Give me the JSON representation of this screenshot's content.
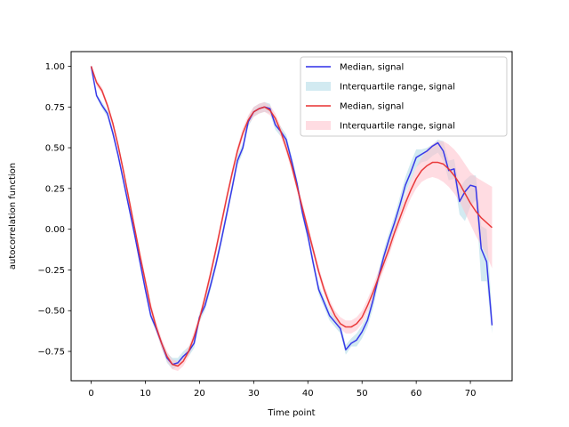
{
  "chart_data": {
    "type": "line",
    "xlabel": "Time point",
    "ylabel": "autocorrelation function",
    "xlim": [
      -3.7,
      77.7
    ],
    "ylim": [
      -0.93,
      1.09
    ],
    "xticks": [
      0,
      10,
      20,
      30,
      40,
      50,
      60,
      70
    ],
    "yticks": [
      -0.75,
      -0.5,
      -0.25,
      0.0,
      0.25,
      0.5,
      0.75,
      1.0
    ],
    "ytick_labels": [
      "−0.75",
      "−0.50",
      "−0.25",
      "0.00",
      "0.25",
      "0.50",
      "0.75",
      "1.00"
    ],
    "grid": false,
    "legend_position": "top-right",
    "legend": [
      {
        "label": "Median, signal",
        "kind": "line",
        "color": "#2f2fe8"
      },
      {
        "label": "Interquartile range, signal",
        "kind": "band",
        "color": "#add8e6"
      },
      {
        "label": "Median, signal",
        "kind": "line",
        "color": "#e83030"
      },
      {
        "label": "Interquartile range, signal",
        "kind": "band",
        "color": "#ffc0cb"
      }
    ],
    "series": [
      {
        "color": "#2f2fe8",
        "band_color": "#add8e6",
        "x": [
          0,
          1,
          2,
          3,
          4,
          5,
          6,
          7,
          8,
          9,
          10,
          11,
          12,
          13,
          14,
          15,
          16,
          17,
          18,
          19,
          20,
          21,
          22,
          23,
          24,
          25,
          26,
          27,
          28,
          29,
          30,
          31,
          32,
          33,
          34,
          35,
          36,
          37,
          38,
          39,
          40,
          41,
          42,
          43,
          44,
          45,
          46,
          47,
          48,
          49,
          50,
          51,
          52,
          53,
          54,
          55,
          56,
          57,
          58,
          59,
          60,
          61,
          62,
          63,
          64,
          65,
          66,
          67,
          68,
          69,
          70,
          71,
          72,
          73,
          74
        ],
        "values": [
          1.0,
          0.82,
          0.76,
          0.71,
          0.59,
          0.45,
          0.29,
          0.13,
          -0.03,
          -0.2,
          -0.37,
          -0.53,
          -0.61,
          -0.7,
          -0.79,
          -0.83,
          -0.82,
          -0.78,
          -0.75,
          -0.7,
          -0.54,
          -0.47,
          -0.35,
          -0.22,
          -0.07,
          0.09,
          0.25,
          0.42,
          0.5,
          0.66,
          0.72,
          0.74,
          0.75,
          0.74,
          0.64,
          0.6,
          0.55,
          0.42,
          0.28,
          0.1,
          -0.04,
          -0.21,
          -0.37,
          -0.45,
          -0.53,
          -0.57,
          -0.61,
          -0.74,
          -0.7,
          -0.68,
          -0.63,
          -0.56,
          -0.44,
          -0.3,
          -0.17,
          -0.06,
          0.04,
          0.15,
          0.27,
          0.35,
          0.44,
          0.46,
          0.48,
          0.51,
          0.53,
          0.48,
          0.36,
          0.37,
          0.17,
          0.23,
          0.27,
          0.26,
          -0.12,
          -0.2,
          -0.59
        ],
        "q1": [
          1.0,
          0.81,
          0.74,
          0.69,
          0.57,
          0.43,
          0.27,
          0.11,
          -0.05,
          -0.22,
          -0.39,
          -0.55,
          -0.63,
          -0.73,
          -0.82,
          -0.86,
          -0.84,
          -0.8,
          -0.78,
          -0.73,
          -0.57,
          -0.5,
          -0.38,
          -0.25,
          -0.1,
          0.06,
          0.22,
          0.39,
          0.47,
          0.63,
          0.69,
          0.71,
          0.72,
          0.71,
          0.61,
          0.57,
          0.52,
          0.39,
          0.25,
          0.07,
          -0.07,
          -0.24,
          -0.4,
          -0.48,
          -0.56,
          -0.6,
          -0.64,
          -0.77,
          -0.72,
          -0.72,
          -0.67,
          -0.6,
          -0.49,
          -0.34,
          -0.21,
          -0.1,
          0.0,
          0.1,
          0.22,
          0.3,
          0.38,
          0.41,
          0.42,
          0.45,
          0.47,
          0.42,
          0.3,
          0.31,
          0.09,
          0.05,
          0.14,
          0.18,
          -0.32,
          -0.32,
          -0.64
        ],
        "q3": [
          1.0,
          0.83,
          0.78,
          0.73,
          0.61,
          0.47,
          0.31,
          0.15,
          -0.01,
          -0.18,
          -0.35,
          -0.51,
          -0.59,
          -0.68,
          -0.76,
          -0.79,
          -0.79,
          -0.75,
          -0.72,
          -0.67,
          -0.51,
          -0.44,
          -0.32,
          -0.19,
          -0.04,
          0.12,
          0.28,
          0.45,
          0.53,
          0.69,
          0.75,
          0.77,
          0.78,
          0.77,
          0.67,
          0.63,
          0.58,
          0.45,
          0.31,
          0.13,
          -0.01,
          -0.18,
          -0.34,
          -0.42,
          -0.5,
          -0.54,
          -0.58,
          -0.71,
          -0.67,
          -0.64,
          -0.59,
          -0.52,
          -0.4,
          -0.26,
          -0.13,
          -0.02,
          0.08,
          0.2,
          0.32,
          0.41,
          0.49,
          0.49,
          0.5,
          0.52,
          0.55,
          0.54,
          0.42,
          0.43,
          0.25,
          0.3,
          0.33,
          0.33,
          0.02,
          0.0,
          -0.51
        ]
      },
      {
        "color": "#e83030",
        "band_color": "#ffc0cb",
        "x": [
          0,
          1,
          2,
          3,
          4,
          5,
          6,
          7,
          8,
          9,
          10,
          11,
          12,
          13,
          14,
          15,
          16,
          17,
          18,
          19,
          20,
          21,
          22,
          23,
          24,
          25,
          26,
          27,
          28,
          29,
          30,
          31,
          32,
          33,
          34,
          35,
          36,
          37,
          38,
          39,
          40,
          41,
          42,
          43,
          44,
          45,
          46,
          47,
          48,
          49,
          50,
          51,
          52,
          53,
          54,
          55,
          56,
          57,
          58,
          59,
          60,
          61,
          62,
          63,
          64,
          65,
          66,
          67,
          68,
          69,
          70,
          71,
          72,
          73,
          74
        ],
        "values": [
          1.0,
          0.9,
          0.85,
          0.76,
          0.65,
          0.51,
          0.35,
          0.18,
          0.01,
          -0.16,
          -0.32,
          -0.48,
          -0.6,
          -0.7,
          -0.78,
          -0.83,
          -0.84,
          -0.81,
          -0.75,
          -0.66,
          -0.55,
          -0.42,
          -0.28,
          -0.13,
          0.03,
          0.19,
          0.34,
          0.48,
          0.59,
          0.67,
          0.72,
          0.74,
          0.75,
          0.73,
          0.68,
          0.6,
          0.5,
          0.39,
          0.26,
          0.13,
          0.0,
          -0.13,
          -0.26,
          -0.37,
          -0.46,
          -0.53,
          -0.58,
          -0.6,
          -0.6,
          -0.58,
          -0.54,
          -0.47,
          -0.39,
          -0.3,
          -0.21,
          -0.12,
          -0.02,
          0.07,
          0.16,
          0.24,
          0.31,
          0.36,
          0.39,
          0.41,
          0.41,
          0.4,
          0.37,
          0.33,
          0.28,
          0.22,
          0.16,
          0.11,
          0.07,
          0.04,
          0.01
        ],
        "q1": [
          1.0,
          0.88,
          0.83,
          0.74,
          0.62,
          0.48,
          0.32,
          0.15,
          -0.02,
          -0.19,
          -0.35,
          -0.51,
          -0.63,
          -0.73,
          -0.81,
          -0.86,
          -0.87,
          -0.84,
          -0.78,
          -0.69,
          -0.58,
          -0.45,
          -0.31,
          -0.16,
          0.0,
          0.16,
          0.31,
          0.45,
          0.56,
          0.64,
          0.69,
          0.71,
          0.72,
          0.7,
          0.65,
          0.57,
          0.47,
          0.36,
          0.23,
          0.1,
          -0.03,
          -0.16,
          -0.29,
          -0.4,
          -0.49,
          -0.56,
          -0.61,
          -0.64,
          -0.64,
          -0.62,
          -0.58,
          -0.51,
          -0.43,
          -0.34,
          -0.25,
          -0.16,
          -0.06,
          0.03,
          0.11,
          0.19,
          0.25,
          0.29,
          0.31,
          0.32,
          0.31,
          0.29,
          0.26,
          0.22,
          0.17,
          0.1,
          0.03,
          -0.04,
          -0.1,
          -0.16,
          -0.24
        ],
        "q3": [
          1.0,
          0.92,
          0.87,
          0.78,
          0.67,
          0.53,
          0.37,
          0.2,
          0.03,
          -0.13,
          -0.29,
          -0.45,
          -0.57,
          -0.67,
          -0.75,
          -0.8,
          -0.81,
          -0.78,
          -0.72,
          -0.63,
          -0.52,
          -0.39,
          -0.25,
          -0.1,
          0.06,
          0.22,
          0.37,
          0.51,
          0.62,
          0.7,
          0.75,
          0.77,
          0.78,
          0.76,
          0.71,
          0.63,
          0.53,
          0.42,
          0.29,
          0.16,
          0.03,
          -0.1,
          -0.23,
          -0.34,
          -0.43,
          -0.5,
          -0.54,
          -0.56,
          -0.56,
          -0.54,
          -0.5,
          -0.43,
          -0.35,
          -0.26,
          -0.17,
          -0.08,
          0.02,
          0.11,
          0.21,
          0.3,
          0.38,
          0.44,
          0.49,
          0.52,
          0.54,
          0.54,
          0.52,
          0.49,
          0.45,
          0.4,
          0.35,
          0.32,
          0.3,
          0.28,
          0.26
        ]
      }
    ]
  }
}
